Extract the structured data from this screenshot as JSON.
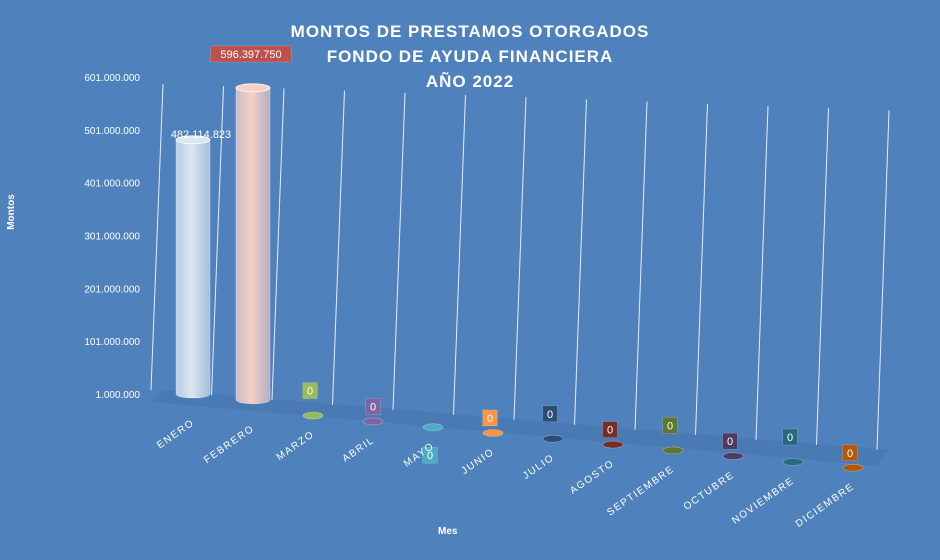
{
  "chart_data": {
    "type": "bar",
    "style": "3d-cylinder",
    "title_lines": [
      "MONTOS  DE  PRESTAMOS  OTORGADOS",
      "FONDO  DE  AYUDA  FINANCIERA",
      "AÑO   2022"
    ],
    "xlabel": "Mes",
    "ylabel": "Montos",
    "ylim": [
      1000000,
      601000000
    ],
    "yticks": [
      "1.000.000",
      "101.000.000",
      "201.000.000",
      "301.000.000",
      "401.000.000",
      "501.000.000",
      "601.000.000"
    ],
    "ytick_values": [
      1000000,
      101000000,
      201000000,
      301000000,
      401000000,
      501000000,
      601000000
    ],
    "categories": [
      "ENERO",
      "FEBRERO",
      "MARZO",
      "ABRIL",
      "MAYO",
      "JUNIO",
      "JULIO",
      "AGOSTO",
      "SEPTIEMBRE",
      "OCTUBRE",
      "NOVIEMBRE",
      "DICIEMBRE"
    ],
    "values": [
      482114823,
      596397750,
      0,
      0,
      0,
      0,
      0,
      0,
      0,
      0,
      0,
      0
    ],
    "data_labels": [
      "482.114.823",
      "596.397.750",
      "0",
      "0",
      "0",
      "0",
      "0",
      "0",
      "0",
      "0",
      "0",
      "0"
    ],
    "colors": [
      "#dce6f0",
      "#f4d0c6",
      "#9bbb59",
      "#8064a2",
      "#4bacc6",
      "#f79646",
      "#2c4d75",
      "#772c2a",
      "#5f7530",
      "#4d3b62",
      "#276a7c",
      "#b65708"
    ],
    "background": "#4f81bd",
    "grid": true,
    "legend": "none"
  }
}
